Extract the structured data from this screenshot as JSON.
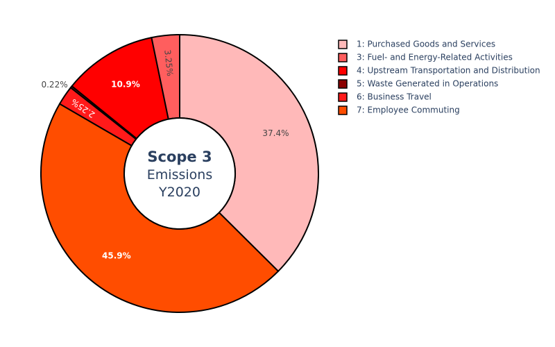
{
  "chart_data": {
    "type": "pie",
    "hole": true,
    "center_label": {
      "line1": "Scope 3",
      "line2": "Emissions",
      "line3": "Y2020"
    },
    "slices": [
      {
        "label": "1: Purchased Goods and Services",
        "value": 37.4,
        "text": "37.4%",
        "color": "#ffb9b9",
        "text_color": "#444444",
        "bold": false,
        "text_pos": "inside"
      },
      {
        "label": "7: Employee Commuting",
        "value": 45.9,
        "text": "45.9%",
        "color": "#ff4d00",
        "text_color": "#ffffff",
        "bold": true,
        "text_pos": "inside"
      },
      {
        "label": "4: Upstream Transportation and Distribution",
        "value": 2.25,
        "text": "2.25%",
        "color": "#ff1a1a",
        "text_color": "#ffffff",
        "bold": false,
        "text_pos": "inside"
      },
      {
        "label": "5: Waste Generated in Operations",
        "value": 0.22,
        "text": "0.22%",
        "color": "#8b0000",
        "text_color": "#444444",
        "bold": false,
        "text_pos": "outside"
      },
      {
        "label": "6: Business Travel",
        "value": 10.9,
        "text": "10.9%",
        "color": "#ff0000",
        "text_color": "#ffffff",
        "bold": true,
        "text_pos": "inside"
      },
      {
        "label": "3: Fuel- and Energy-Related Activities",
        "value": 3.25,
        "text": "3.25%",
        "color": "#ff5e5e",
        "text_color": "#444444",
        "bold": false,
        "text_pos": "inside-radial"
      }
    ],
    "legend": {
      "placement": "top-right",
      "items": [
        {
          "label": "1: Purchased Goods and Services",
          "color": "#ffb9b9"
        },
        {
          "label": "3: Fuel- and Energy-Related Activities",
          "color": "#ff5e5e"
        },
        {
          "label": "4: Upstream Transportation and Distribution",
          "color": "#ff0000"
        },
        {
          "label": "5: Waste Generated in Operations",
          "color": "#8b0000"
        },
        {
          "label": "6: Business Travel",
          "color": "#ff1a1a"
        },
        {
          "label": "7: Employee Commuting",
          "color": "#ff4d00"
        }
      ]
    }
  }
}
